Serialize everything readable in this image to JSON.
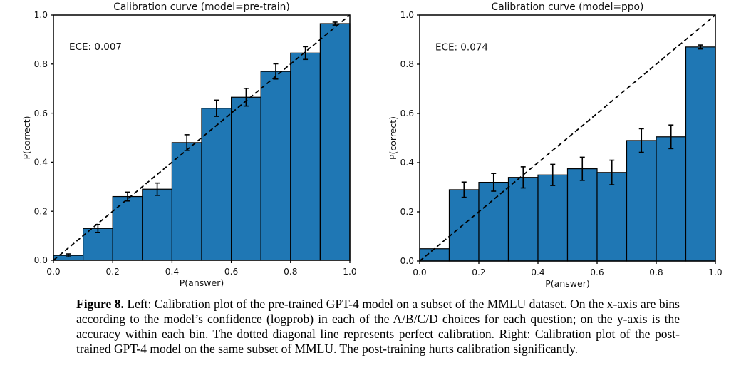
{
  "page": {
    "background": "#ffffff",
    "text_color": "#000000"
  },
  "chart_data": [
    {
      "type": "bar",
      "title": "Calibration curve (model=pre-train)",
      "annotation": "ECE: 0.007",
      "xlabel": "P(answer)",
      "ylabel": "P(correct)",
      "xlim": [
        0.0,
        1.0
      ],
      "ylim": [
        0.0,
        1.0
      ],
      "xticks": [
        "0.0",
        "0.2",
        "0.4",
        "0.6",
        "0.8",
        "1.0"
      ],
      "yticks": [
        "0.0",
        "0.2",
        "0.4",
        "0.6",
        "0.8",
        "1.0"
      ],
      "bin_edges": [
        0.0,
        0.1,
        0.2,
        0.3,
        0.4,
        0.5,
        0.6,
        0.7,
        0.8,
        0.9,
        1.0
      ],
      "values": [
        0.02,
        0.13,
        0.26,
        0.29,
        0.48,
        0.62,
        0.665,
        0.77,
        0.845,
        0.965
      ],
      "errors": [
        0.006,
        0.016,
        0.018,
        0.025,
        0.032,
        0.033,
        0.036,
        0.031,
        0.026,
        0.006
      ],
      "bar_color": "#1f77b4",
      "bar_edge_color": "#000000",
      "diagonal_line": {
        "style": "dashed",
        "color": "#000000",
        "from": [
          0.0,
          0.0
        ],
        "to": [
          1.0,
          1.0
        ]
      },
      "grid": false,
      "legend": null
    },
    {
      "type": "bar",
      "title": "Calibration curve (model=ppo)",
      "annotation": "ECE: 0.074",
      "xlabel": "P(answer)",
      "ylabel": "P(correct)",
      "xlim": [
        0.0,
        1.0
      ],
      "ylim": [
        0.0,
        1.0
      ],
      "xticks": [
        "0.0",
        "0.2",
        "0.4",
        "0.6",
        "0.8",
        "1.0"
      ],
      "yticks": [
        "0.0",
        "0.2",
        "0.4",
        "0.6",
        "0.8",
        "1.0"
      ],
      "bin_edges": [
        0.0,
        0.1,
        0.2,
        0.3,
        0.4,
        0.5,
        0.6,
        0.7,
        0.8,
        0.9,
        1.0
      ],
      "values": [
        0.05,
        0.29,
        0.32,
        0.34,
        0.35,
        0.375,
        0.36,
        0.49,
        0.505,
        0.87
      ],
      "errors": [
        0,
        0.031,
        0.036,
        0.043,
        0.043,
        0.047,
        0.05,
        0.048,
        0.048,
        0.008
      ],
      "bar_color": "#1f77b4",
      "bar_edge_color": "#000000",
      "diagonal_line": {
        "style": "dashed",
        "color": "#000000",
        "from": [
          0.0,
          0.0
        ],
        "to": [
          1.0,
          1.0
        ]
      },
      "grid": false,
      "legend": null
    }
  ],
  "caption": {
    "label": "Figure 8.",
    "text": "Left: Calibration plot of the pre-trained GPT-4 model on a subset of the MMLU dataset. On the x-axis are bins according to the model’s confidence (logprob) in each of the A/B/C/D choices for each question; on the y-axis is the accuracy within each bin. The dotted diagonal line represents perfect calibration. Right: Calibration plot of the post-trained GPT-4 model on the same subset of MMLU. The post-training hurts calibration significantly."
  }
}
